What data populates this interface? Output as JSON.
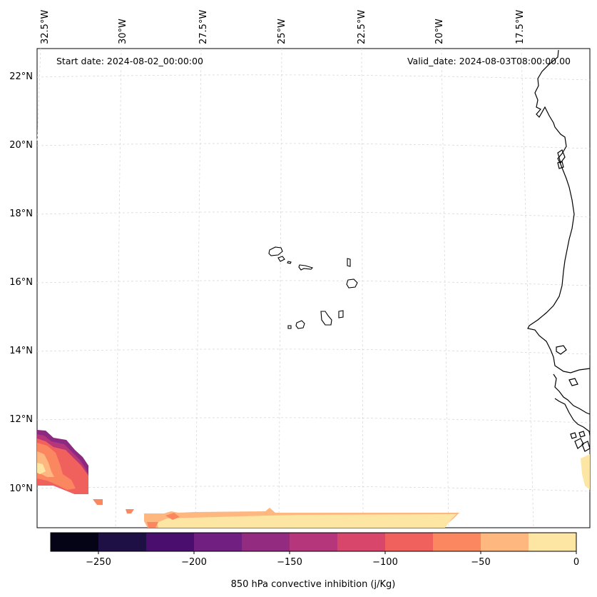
{
  "header": {
    "start_date": "Start date: 2024-08-02_00:00:00",
    "valid_date": "Valid_date: 2024-08-03T08:00:00.00"
  },
  "map": {
    "lon_labels": [
      "32.5°W",
      "30°W",
      "27.5°W",
      "25°W",
      "22.5°W",
      "20°W",
      "17.5°W"
    ],
    "lat_labels": [
      "22°N",
      "20°N",
      "18°N",
      "16°N",
      "14°N",
      "12°N",
      "10°N"
    ],
    "field_colors": [
      "#fde5a3",
      "#feb77e",
      "#fb8760",
      "#f0605d",
      "#d8466c",
      "#b5367a",
      "#8c2981"
    ]
  },
  "colorbar": {
    "label": "850 hPa convective inhibition (j/Kg)",
    "ticks": [
      "−250",
      "−200",
      "−150",
      "−100",
      "−50",
      "0"
    ],
    "colors": [
      "#050416",
      "#1e1045",
      "#4a0f6e",
      "#711f81",
      "#932b80",
      "#b5367a",
      "#d8466c",
      "#f0605d",
      "#fb8760",
      "#feb77e",
      "#fde5a3"
    ]
  }
}
